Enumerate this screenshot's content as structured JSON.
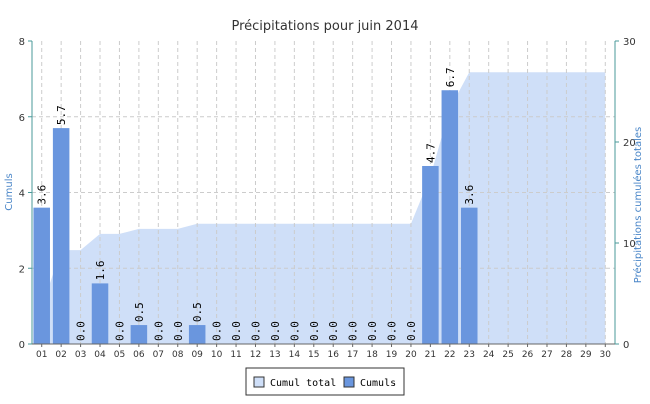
{
  "chart_data": {
    "type": "bar",
    "title": "Précipitations pour juin 2014",
    "ylabel_left": "Cumuls",
    "ylabel_right": "Précipitations cumulées totales",
    "categories": [
      "01",
      "02",
      "03",
      "04",
      "05",
      "06",
      "07",
      "08",
      "09",
      "10",
      "11",
      "12",
      "13",
      "14",
      "15",
      "16",
      "17",
      "18",
      "19",
      "20",
      "21",
      "22",
      "23",
      "24",
      "25",
      "26",
      "27",
      "28",
      "29",
      "30"
    ],
    "y_left_range": [
      0,
      8
    ],
    "y_left_ticks": [
      "0",
      "2",
      "4",
      "6",
      "8"
    ],
    "y_right_range": [
      0,
      30
    ],
    "y_right_ticks": [
      "0",
      "10",
      "20",
      "30"
    ],
    "grid": true,
    "legend_position": "bottom-center",
    "series": [
      {
        "name": "Cumuls",
        "kind": "bar",
        "axis": "left",
        "color": "#6a96de",
        "values": [
          3.6,
          5.7,
          0.0,
          1.6,
          0.0,
          0.5,
          0.0,
          0.0,
          0.5,
          0.0,
          0.0,
          0.0,
          0.0,
          0.0,
          0.0,
          0.0,
          0.0,
          0.0,
          0.0,
          0.0,
          4.7,
          6.7,
          3.6,
          null,
          null,
          null,
          null,
          null,
          null,
          null
        ],
        "labels": [
          "3.6",
          "5.7",
          "0.0",
          "1.6",
          "0.0",
          "0.5",
          "0.0",
          "0.0",
          "0.5",
          "0.0",
          "0.0",
          "0.0",
          "0.0",
          "0.0",
          "0.0",
          "0.0",
          "0.0",
          "0.0",
          "0.0",
          "0.0",
          "4.7",
          "6.7",
          "3.6",
          "",
          "",
          "",
          "",
          "",
          "",
          ""
        ]
      },
      {
        "name": "Cumul total",
        "kind": "area",
        "axis": "right",
        "color": "#cfdff8",
        "values": [
          3.6,
          9.3,
          9.3,
          10.9,
          10.9,
          11.4,
          11.4,
          11.4,
          11.9,
          11.9,
          11.9,
          11.9,
          11.9,
          11.9,
          11.9,
          11.9,
          11.9,
          11.9,
          11.9,
          11.9,
          16.6,
          23.3,
          26.9,
          26.9,
          26.9,
          26.9,
          26.9,
          26.9,
          26.9,
          26.9
        ]
      }
    ]
  },
  "legend": {
    "items": [
      {
        "label": "Cumul total",
        "color": "#cfdff8"
      },
      {
        "label": "Cumuls",
        "color": "#6a96de"
      }
    ]
  }
}
